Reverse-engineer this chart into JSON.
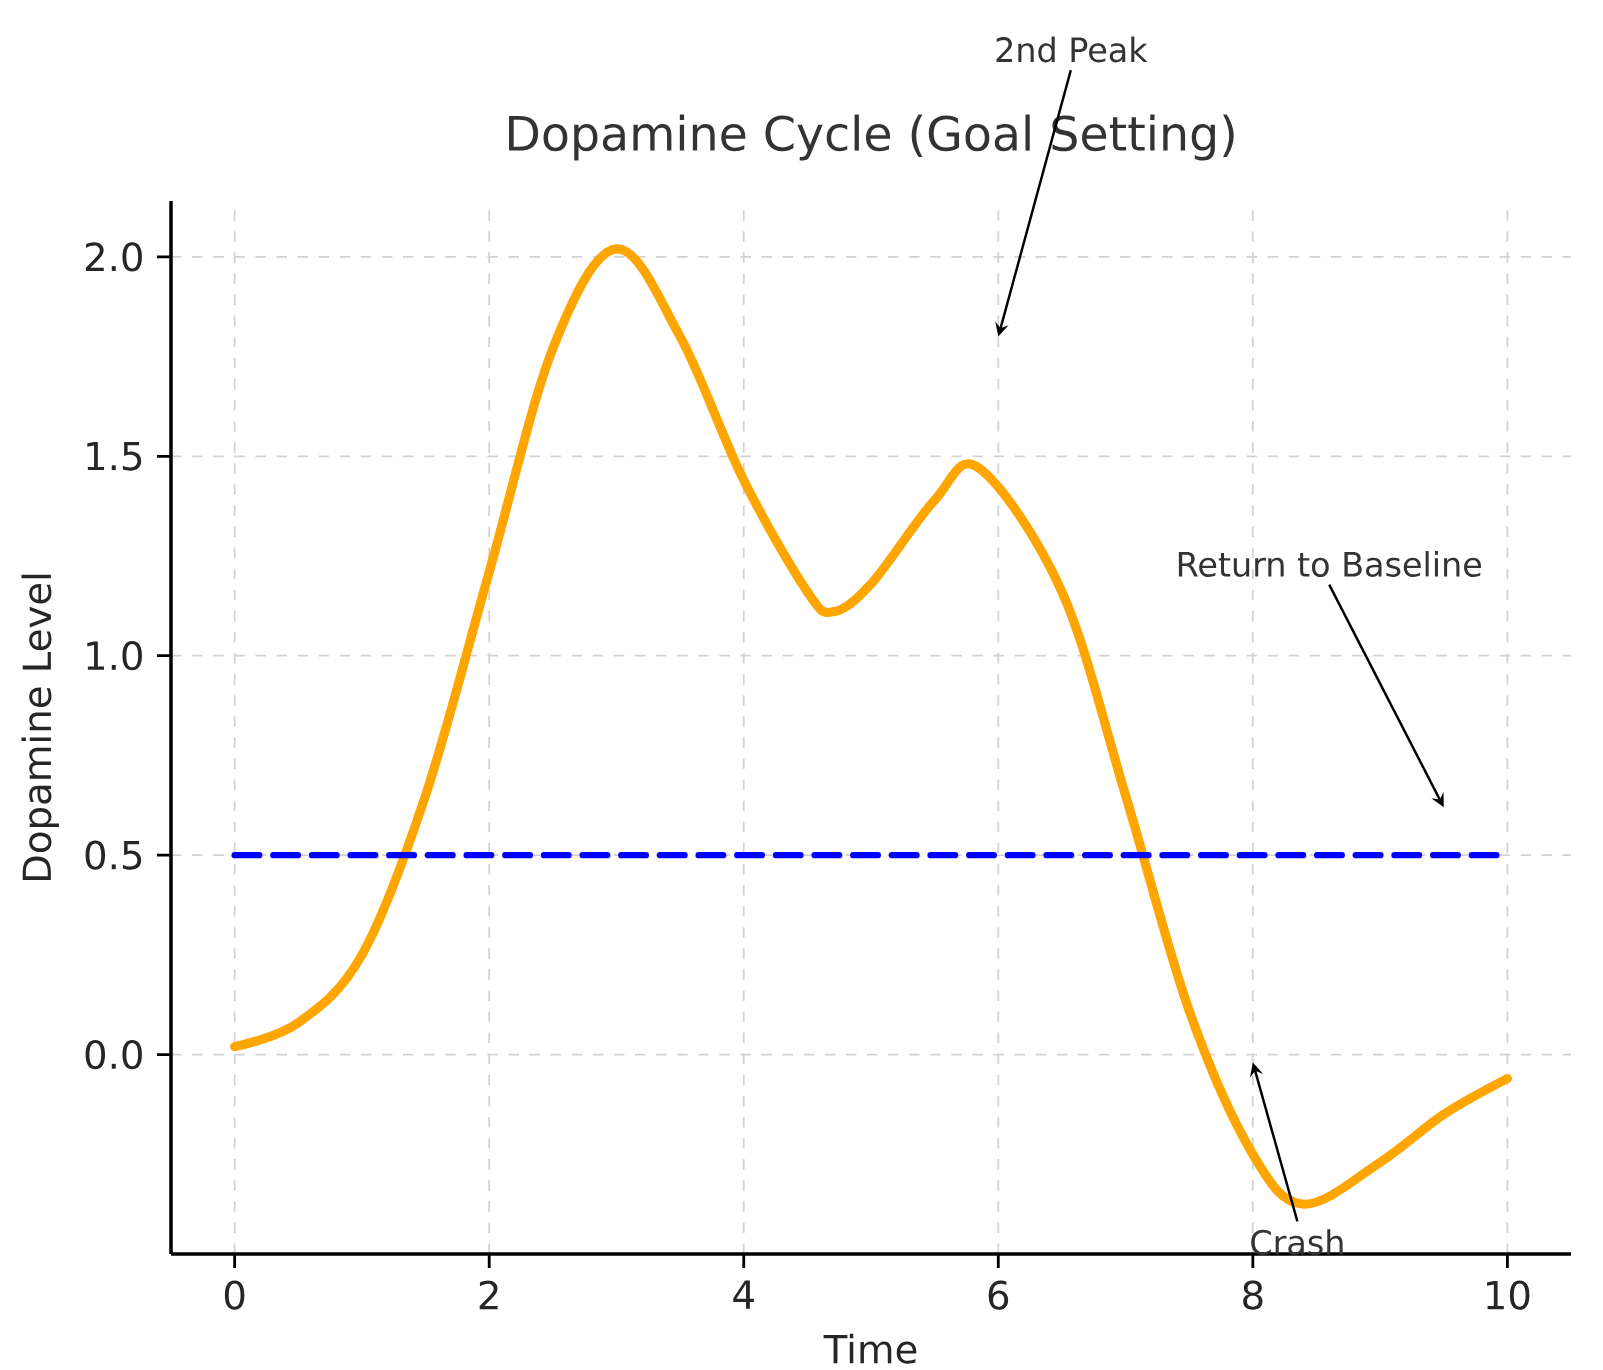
{
  "chart_data": {
    "type": "line",
    "title": "Dopamine Cycle (Goal Setting)",
    "xlabel": "Time",
    "ylabel": "Dopamine Level",
    "xlim": [
      -0.5,
      10.5
    ],
    "ylim": [
      -0.5,
      2.14
    ],
    "xticks": [
      0,
      2,
      4,
      6,
      8,
      10
    ],
    "yticks": [
      {
        "value": 0,
        "label": "0.0"
      },
      0.5,
      {
        "value": 1,
        "label": "1.0"
      },
      1.5,
      {
        "value": 2,
        "label": "2.0"
      }
    ],
    "grid": true,
    "series": [
      {
        "color": "#ffa500",
        "x": [
          0,
          0.5,
          1,
          1.5,
          2,
          2.5,
          3,
          3.5,
          4,
          4.5,
          4.7,
          5,
          5.5,
          5.85,
          6.5,
          7,
          7.5,
          8,
          8.4,
          9,
          9.5,
          10
        ],
        "values": [
          0.02,
          0.08,
          0.25,
          0.65,
          1.21,
          1.77,
          2.02,
          1.8,
          1.44,
          1.16,
          1.11,
          1.18,
          1.39,
          1.47,
          1.16,
          0.65,
          0.11,
          -0.25,
          -0.375,
          -0.27,
          -0.15,
          -0.06
        ]
      },
      {
        "color": "#0000ff",
        "line_style": "dashed",
        "x": [
          0,
          10
        ],
        "values": [
          0.5,
          0.5
        ]
      }
    ],
    "annotations": [
      "2nd Peak",
      "Return to Baseline",
      "Crash"
    ]
  }
}
